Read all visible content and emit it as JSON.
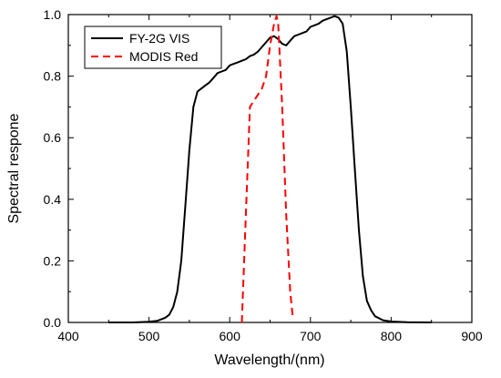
{
  "chart_data": {
    "type": "line",
    "xlabel": "Wavelength/(nm)",
    "ylabel": "Spectral respone",
    "xlim": [
      400,
      900
    ],
    "ylim": [
      0,
      1.0
    ],
    "x_ticks": [
      400,
      500,
      600,
      700,
      800,
      900
    ],
    "y_ticks": [
      0.0,
      0.2,
      0.4,
      0.6,
      0.8,
      1.0
    ],
    "x_tick_labels": [
      "400",
      "500",
      "600",
      "700",
      "800",
      "900"
    ],
    "y_tick_labels": [
      "0.0",
      "0.2",
      "0.4",
      "0.6",
      "0.8",
      "1.0"
    ],
    "grid": false,
    "legend_position": "top-left",
    "series": [
      {
        "name": "FY-2G VIS",
        "style": "solid",
        "color": "#000000",
        "x": [
          450,
          480,
          500,
          510,
          520,
          525,
          530,
          535,
          540,
          545,
          550,
          555,
          560,
          565,
          570,
          575,
          580,
          585,
          590,
          595,
          600,
          605,
          610,
          615,
          620,
          625,
          630,
          635,
          640,
          645,
          650,
          655,
          660,
          665,
          670,
          675,
          680,
          685,
          690,
          695,
          700,
          705,
          710,
          715,
          720,
          725,
          730,
          735,
          740,
          745,
          750,
          755,
          760,
          765,
          770,
          775,
          780,
          790,
          800,
          820,
          850
        ],
        "y": [
          0.0,
          0.0,
          0.002,
          0.005,
          0.015,
          0.025,
          0.05,
          0.1,
          0.2,
          0.38,
          0.56,
          0.7,
          0.75,
          0.76,
          0.77,
          0.78,
          0.795,
          0.81,
          0.815,
          0.82,
          0.835,
          0.84,
          0.845,
          0.85,
          0.855,
          0.865,
          0.87,
          0.88,
          0.895,
          0.91,
          0.925,
          0.93,
          0.92,
          0.905,
          0.9,
          0.915,
          0.93,
          0.935,
          0.94,
          0.945,
          0.96,
          0.965,
          0.97,
          0.98,
          0.985,
          0.99,
          0.995,
          0.99,
          0.97,
          0.88,
          0.7,
          0.5,
          0.3,
          0.15,
          0.07,
          0.04,
          0.02,
          0.007,
          0.003,
          0.001,
          0.0
        ]
      },
      {
        "name": "MODIS Red",
        "style": "dashed",
        "color": "#ff0000",
        "x": [
          615,
          620,
          625,
          630,
          635,
          640,
          645,
          650,
          655,
          658,
          660,
          665,
          670,
          675,
          678
        ],
        "y": [
          0.0,
          0.35,
          0.7,
          0.72,
          0.74,
          0.76,
          0.8,
          0.9,
          0.97,
          0.995,
          0.97,
          0.7,
          0.35,
          0.1,
          0.02
        ]
      }
    ]
  }
}
